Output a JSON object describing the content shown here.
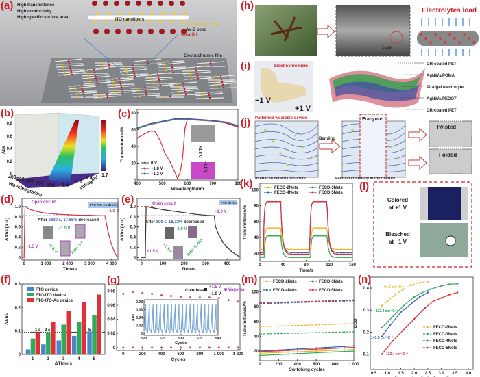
{
  "panels": {
    "a": {
      "label": "(a)",
      "features": [
        "High transmittance",
        "High conductivity",
        "High specific surface area"
      ],
      "ito": "ITO nanofibers",
      "au": "Au nanoparticles",
      "aus": "Au-S bond",
      "urea": "Urea-SH",
      "film": "Electrochromic film"
    },
    "b": {
      "label": "(b)",
      "zlabel": "Abs",
      "zticks": [
        "0",
        "0.2",
        "0.4",
        "0.6",
        "0.8"
      ],
      "xlabel": "Wavelength/nm",
      "xticks": [
        "400",
        "500",
        "600",
        "700",
        "800"
      ],
      "ylabel": "Voltage/V",
      "yticks": [
        "0.8",
        "1.1",
        "1.4",
        "1.7"
      ]
    },
    "c": {
      "label": "(c)",
      "inset_top": "−1.2 V",
      "inset_bottom": "+1.8 V"
    },
    "d": {
      "label": "(d)",
      "open": "Open circuit",
      "device": "FTO-ITO-Au device",
      "neg": "−1.0 V",
      "pos": "+1.5 V",
      "note_pre": "After ",
      "note_val": "3600 s, 17.65%",
      "note_post": " decreased",
      "cyc_neg": "−1.0 V",
      "cyc_pos": "+1.5 V",
      "cyc_after": "After 1 h"
    },
    "e": {
      "label": "(e)",
      "open": "Open circuit",
      "device": "FTO device",
      "neg": "−1.0 V",
      "pos": "+1.5 V",
      "note_pre": "After ",
      "note_val": "300 s, 18.33%",
      "note_post": " decreased",
      "cyc_neg": "−1.0 V",
      "cyc_pos": "+1.5 V",
      "cyc_after": "After 5 min"
    },
    "f": {
      "label": "(f)",
      "ann": [
        "1 s",
        "2 s",
        "5 s"
      ]
    },
    "g": {
      "label": "(g)",
      "colorless": "Colorless",
      "magenta": "Magenta",
      "pos": "+1.5 V",
      "neg": "−1.0 V"
    },
    "h": {
      "label": "(h)",
      "scale": "1 μm",
      "title": "Electrolytes load"
    },
    "i": {
      "label": "(i)",
      "electro": "Electrochromism",
      "neg": "−1 V",
      "pos": "+1 V",
      "layers": [
        "GR-coated PET",
        "AgNWs/POMA",
        "PLA/gel electrolyte",
        "AgNWs/PEDOT",
        "GR-coated PET"
      ]
    },
    "j": {
      "label": "(j)",
      "patterned": "Patterned wearable device",
      "bending": "Bending",
      "fracture": "Fracyure",
      "cap1": "Interlaced network structure",
      "cap2": "Maintain continuity at the fracture",
      "twisted": "Twisted",
      "folded": "Folded"
    },
    "k": {
      "label": "(k)"
    },
    "l": {
      "label": "(l)",
      "colored": [
        "Colored",
        "at +1 V"
      ],
      "bleached": [
        "Bleached",
        "at −1 V"
      ]
    },
    "m": {
      "label": "(m)"
    },
    "n": {
      "label": "(n)",
      "slopes": [
        "94.6 cm²·C⁻¹",
        "112.4 cm²·C⁻¹",
        "143.5 cm²·C⁻¹",
        "132.4 cm²·C⁻¹"
      ]
    }
  },
  "colors": {
    "panel_label": "#d0202a",
    "blue": "#2f5fb0",
    "red": "#e0303a",
    "green": "#2eaa5a",
    "yellow": "#f0b428",
    "magenta": "#b040c0"
  },
  "chart_data": [
    {
      "id": "c",
      "type": "line",
      "xlabel": "Wavelength/nm",
      "ylabel": "Transmittance/%",
      "xlim": [
        400,
        800
      ],
      "ylim": [
        0,
        84
      ],
      "xticks": [
        400,
        500,
        600,
        700,
        800
      ],
      "yticks": [
        0,
        20,
        40,
        60,
        80
      ],
      "legend": "bottom-left",
      "series": [
        {
          "name": "0 V",
          "color": "#666666",
          "x": [
            400,
            450,
            500,
            550,
            600,
            650,
            700,
            750,
            800
          ],
          "y": [
            61,
            66,
            69,
            72,
            72,
            71,
            70,
            68,
            64
          ]
        },
        {
          "name": "+1.8 V",
          "color": "#e0303a",
          "x": [
            400,
            430,
            450,
            470,
            490,
            510,
            530,
            545,
            560,
            570,
            580,
            590,
            600,
            650,
            700,
            750,
            800
          ],
          "y": [
            50,
            55,
            58,
            58,
            48,
            32,
            22,
            12,
            2,
            8,
            25,
            62,
            73,
            72,
            71,
            68,
            63
          ]
        },
        {
          "name": "−1.2 V",
          "color": "#2f5fb0",
          "x": [
            400,
            450,
            500,
            550,
            600,
            650,
            700,
            750,
            800
          ],
          "y": [
            62,
            67,
            70,
            73,
            73,
            72,
            71,
            69,
            65
          ]
        }
      ]
    },
    {
      "id": "d",
      "type": "line",
      "xlabel": "Time/s",
      "ylabel": "ΔAbs/(a.u.)",
      "xlim": [
        -100,
        4300
      ],
      "ylim": [
        -0.05,
        1.16
      ],
      "xticks": [
        0,
        1000,
        2000,
        3000,
        4000
      ],
      "xticklabels": [
        "0",
        "1 000",
        "2 000",
        "3 000",
        "4 000"
      ],
      "yticks": [
        0,
        0.2,
        0.4,
        0.6,
        0.8,
        1.0
      ],
      "yticklabels": [
        "0",
        "0.2",
        "0.4",
        "0.6",
        "0.8",
        "1.0"
      ],
      "series": [
        {
          "color": "#e0303a",
          "x": [
            0,
            40,
            300,
            600,
            1000,
            1500,
            2000,
            2500,
            3000,
            3500,
            3700,
            3760,
            3850,
            3950,
            4050,
            4150,
            4250
          ],
          "y": [
            0,
            1.0,
            0.94,
            0.9,
            0.87,
            0.85,
            0.84,
            0.83,
            0.83,
            0.82,
            0.82,
            0.7,
            0.5,
            0.33,
            0.2,
            0.1,
            0.02
          ]
        },
        {
          "color": "#2f5fb0",
          "dashed": true,
          "x": [
            -100,
            3760
          ],
          "y": [
            0.82,
            0.82
          ]
        },
        {
          "color": "#2f5fb0",
          "dashed": true,
          "x": [
            -100,
            200
          ],
          "y": [
            1.0,
            1.0
          ]
        }
      ]
    },
    {
      "id": "e",
      "type": "line",
      "xlabel": "Time/s",
      "ylabel": "ΔAbs/(a.u.)",
      "xlim": [
        -20,
        460
      ],
      "ylim": [
        -0.05,
        1.16
      ],
      "xticks": [
        0,
        100,
        200,
        300,
        400
      ],
      "yticks": [
        0,
        0.2,
        0.4,
        0.6,
        0.8,
        1.0
      ],
      "yticklabels": [
        "0",
        "0.2",
        "0.4",
        "0.6",
        "0.8",
        "1.0"
      ],
      "series": [
        {
          "color": "#333333",
          "x": [
            0,
            18,
            22,
            60,
            100,
            150,
            200,
            250,
            300,
            340,
            345,
            360,
            380,
            400,
            420,
            440,
            455
          ],
          "y": [
            0,
            0,
            1.0,
            0.97,
            0.94,
            0.91,
            0.88,
            0.85,
            0.83,
            0.82,
            0.62,
            0.45,
            0.3,
            0.2,
            0.12,
            0.06,
            0.02
          ]
        },
        {
          "color": "#e0303a",
          "dashed": true,
          "x": [
            -20,
            345
          ],
          "y": [
            0.82,
            0.82
          ]
        },
        {
          "color": "#e0303a",
          "dashed": true,
          "x": [
            -20,
            60
          ],
          "y": [
            1.0,
            1.0
          ]
        }
      ]
    },
    {
      "id": "f",
      "type": "bar",
      "xlabel": "ΔTime/s",
      "ylabel": "ΔAbs",
      "categories": [
        "1",
        "2",
        "3",
        "4",
        "5"
      ],
      "xlim": [
        0.3,
        5.7
      ],
      "ylim": [
        0,
        0.3
      ],
      "yticks": [
        0,
        0.1,
        0.2,
        0.3
      ],
      "yticklabels": [
        "0",
        "0.1",
        "0.2",
        "0.3"
      ],
      "reference_line": 0.095,
      "legend": "top-left",
      "series": [
        {
          "name": "FTO device",
          "color": "#4a86c8",
          "values": [
            0.022,
            0.043,
            0.06,
            0.079,
            0.098
          ]
        },
        {
          "name": "FTO-ITO device",
          "color": "#2eaa5a",
          "values": [
            0.068,
            0.095,
            0.127,
            0.14,
            0.168
          ]
        },
        {
          "name": "FTO-ITO-Au device",
          "color": "#e0303a",
          "values": [
            0.095,
            0.14,
            0.185,
            0.222,
            0.255
          ]
        }
      ]
    },
    {
      "id": "g",
      "type": "scatter",
      "xlabel": "Cycles",
      "ylabel": "",
      "xlim": [
        -70,
        1220
      ],
      "ylim": [
        -0.004,
        0.09
      ],
      "xticks": [
        0,
        200,
        400,
        600,
        800,
        1000,
        1200
      ],
      "xticklabels": [
        "0",
        "200",
        "400",
        "600",
        "800",
        "1 000",
        "1 200"
      ],
      "yticks": [
        0,
        0.02,
        0.04,
        0.06,
        0.08
      ],
      "yticklabels": [
        "0",
        "0.02",
        "0.04",
        "0.06",
        "0.08"
      ],
      "series": [
        {
          "name": "Magenta",
          "color": "#d0407a",
          "x": [
            0,
            100,
            200,
            300,
            400,
            500,
            600,
            700,
            800,
            900,
            1000,
            1100,
            1200
          ],
          "y": [
            0.076,
            0.079,
            0.077,
            0.076,
            0.074,
            0.073,
            0.072,
            0.071,
            0.071,
            0.071,
            0.07,
            0.067,
            0.065
          ]
        },
        {
          "name": "Colorless",
          "color": "#d0407a",
          "x": [
            0,
            100,
            200,
            300,
            400,
            500,
            600,
            700,
            800,
            900,
            1000,
            1100,
            1200
          ],
          "y": [
            0,
            0,
            0,
            0,
            0,
            0,
            0,
            0,
            0,
            0,
            0,
            0,
            0
          ]
        }
      ]
    },
    {
      "id": "g_inset",
      "type": "line",
      "xlabel": "Cycles",
      "ylabel": "Abs",
      "xlim": [
        520,
        540
      ],
      "ylim": [
        -0.005,
        0.085
      ],
      "xticks": [
        520,
        525,
        530,
        535,
        540
      ],
      "yticks": [
        0,
        0.02,
        0.04,
        0.06,
        0.08
      ],
      "yticklabels": [
        "0",
        "0.02",
        "0.04",
        "0.06",
        "0.08"
      ],
      "pulse": {
        "period": 1,
        "high": 0.074,
        "low": 0.002,
        "color": "#7aa8d8"
      }
    },
    {
      "id": "k",
      "type": "line",
      "xlabel": "Time/s",
      "ylabel": "Transmittance/%",
      "xlim": [
        0,
        160
      ],
      "ylim": [
        10,
        108
      ],
      "xticks": [
        0,
        40,
        80,
        120,
        160
      ],
      "yticks": [
        20,
        40,
        60,
        80,
        100
      ],
      "legend": "top",
      "series": [
        {
          "name": "FECD-2Nets",
          "color": "#f0b428",
          "high": 52,
          "low": 25
        },
        {
          "name": "FECD-3Nets",
          "color": "#2eaa5a",
          "high": 42,
          "low": 15
        },
        {
          "name": "FECD-4Nets",
          "color": "#2f5fb0",
          "high": 85,
          "low": 21
        },
        {
          "name": "FECD-5Nets",
          "color": "#e0303a",
          "high": 85,
          "low": 19
        }
      ]
    },
    {
      "id": "m",
      "type": "line",
      "xlabel": "Switching cycles",
      "ylabel": "Transmittance/%",
      "xlim": [
        0,
        1000
      ],
      "ylim": [
        7,
        120
      ],
      "xticks": [
        0,
        200,
        400,
        600,
        800,
        1000
      ],
      "xticklabels": [
        "0",
        "200",
        "400",
        "600",
        "800",
        "1 000"
      ],
      "yticks": [
        20,
        40,
        60,
        80,
        100
      ],
      "legend": "top",
      "series": [
        {
          "name": "FECD-2Nets",
          "color": "#f0b428",
          "bleached": [
            53,
            57
          ],
          "colored": [
            17,
            22
          ]
        },
        {
          "name": "FECD-3Nets",
          "color": "#2eaa5a",
          "bleached": [
            43,
            46
          ],
          "colored": [
            14,
            20
          ]
        },
        {
          "name": "FECD-4Nets",
          "color": "#2f5fb0",
          "bleached": [
            84,
            88
          ],
          "colored": [
            20,
            27
          ]
        },
        {
          "name": "FECD-5Nets",
          "color": "#e0303a",
          "bleached": [
            85,
            89
          ],
          "colored": [
            19,
            25
          ]
        }
      ]
    },
    {
      "id": "n",
      "type": "line",
      "xlabel": "Charge density/(mC·cm⁻²)",
      "ylabel": "ΔOD",
      "xlim": [
        0.37,
        4.18
      ],
      "ylim": [
        0.03,
        0.45
      ],
      "xticks": [
        0.5,
        1.0,
        1.5,
        2.0,
        2.5,
        3.0,
        3.5,
        4.0
      ],
      "xticklabels": [
        "0.5",
        "1.0",
        "1.5",
        "2.0",
        "2.5",
        "3.0",
        "3.5",
        "4.0"
      ],
      "yticks": [
        0.1,
        0.2,
        0.3,
        0.4
      ],
      "yticklabels": [
        "0.1",
        "0.2",
        "0.3",
        "0.4"
      ],
      "legend": "bottom-right",
      "series": [
        {
          "name": "FECD-2Nets",
          "color": "#f0b428",
          "x": [
            0.8,
            1.0,
            1.3,
            1.6,
            1.9,
            2.2,
            2.5
          ],
          "y": [
            0.32,
            0.34,
            0.37,
            0.395,
            0.415,
            0.425,
            0.43
          ]
        },
        {
          "name": "FECD-3Nets",
          "color": "#2eaa5a",
          "x": [
            0.8,
            1.2,
            1.6,
            2.0,
            2.3,
            2.6,
            3.0,
            3.3,
            3.6
          ],
          "y": [
            0.22,
            0.27,
            0.32,
            0.36,
            0.38,
            0.395,
            0.41,
            0.418,
            0.42
          ]
        },
        {
          "name": "FECD-4Nets",
          "color": "#2f5fb0",
          "x": [
            0.8,
            1.1,
            1.5,
            1.9,
            2.2,
            2.5
          ],
          "y": [
            0.18,
            0.23,
            0.29,
            0.33,
            0.36,
            0.38
          ]
        },
        {
          "name": "FECD-5Nets",
          "color": "#e0303a",
          "x": [
            0.8,
            1.2,
            1.6,
            2.0,
            2.4,
            2.7,
            3.0,
            3.3,
            3.6
          ],
          "y": [
            0.1,
            0.16,
            0.21,
            0.26,
            0.31,
            0.34,
            0.355,
            0.37,
            0.38
          ]
        }
      ]
    }
  ]
}
